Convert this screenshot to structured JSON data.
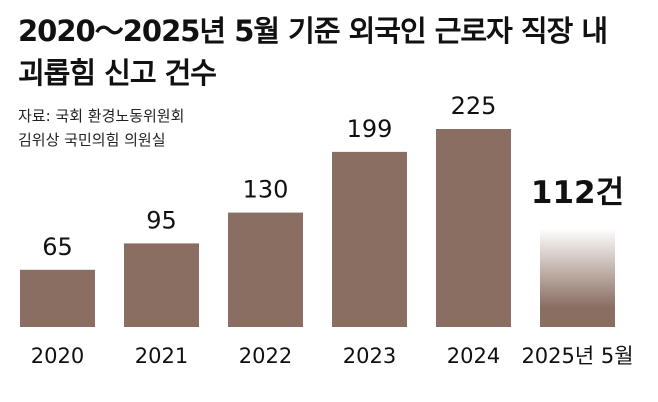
{
  "chart_data": {
    "type": "bar",
    "title": "2020～2025년 5월 기준 외국인 근로자 직장 내\n괴롭힘 신고 건수",
    "source": "자료: 국회 환경노동위원회\n김위상 국민의힘 의원실",
    "categories": [
      "2020",
      "2021",
      "2022",
      "2023",
      "2024",
      "2025년 5월"
    ],
    "values": [
      65,
      95,
      130,
      199,
      225,
      112
    ],
    "value_labels": [
      "65",
      "95",
      "130",
      "199",
      "225",
      "112건"
    ],
    "color": "#8a6e62"
  }
}
